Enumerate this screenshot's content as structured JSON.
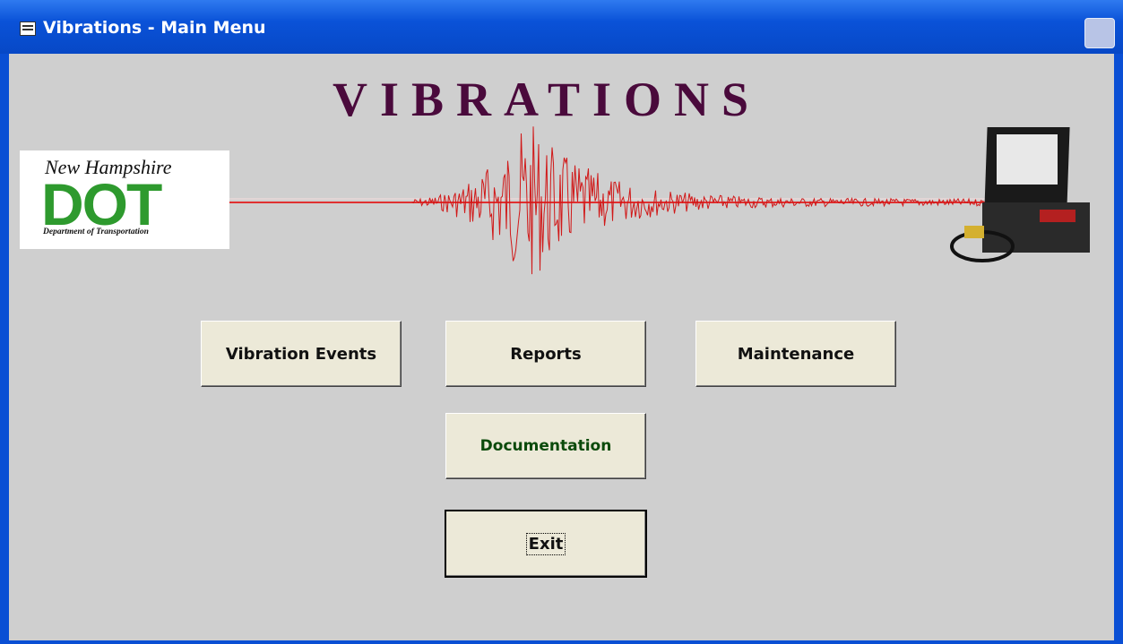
{
  "window": {
    "title": "Vibrations - Main Menu"
  },
  "banner": "VIBRATIONS",
  "logo": {
    "line1": "New Hampshire",
    "line2": "DOT",
    "line3": "Department of Transportation"
  },
  "buttons": [
    "Vibration Events",
    "Reports",
    "Maintenance",
    "Documentation",
    "Exit"
  ]
}
